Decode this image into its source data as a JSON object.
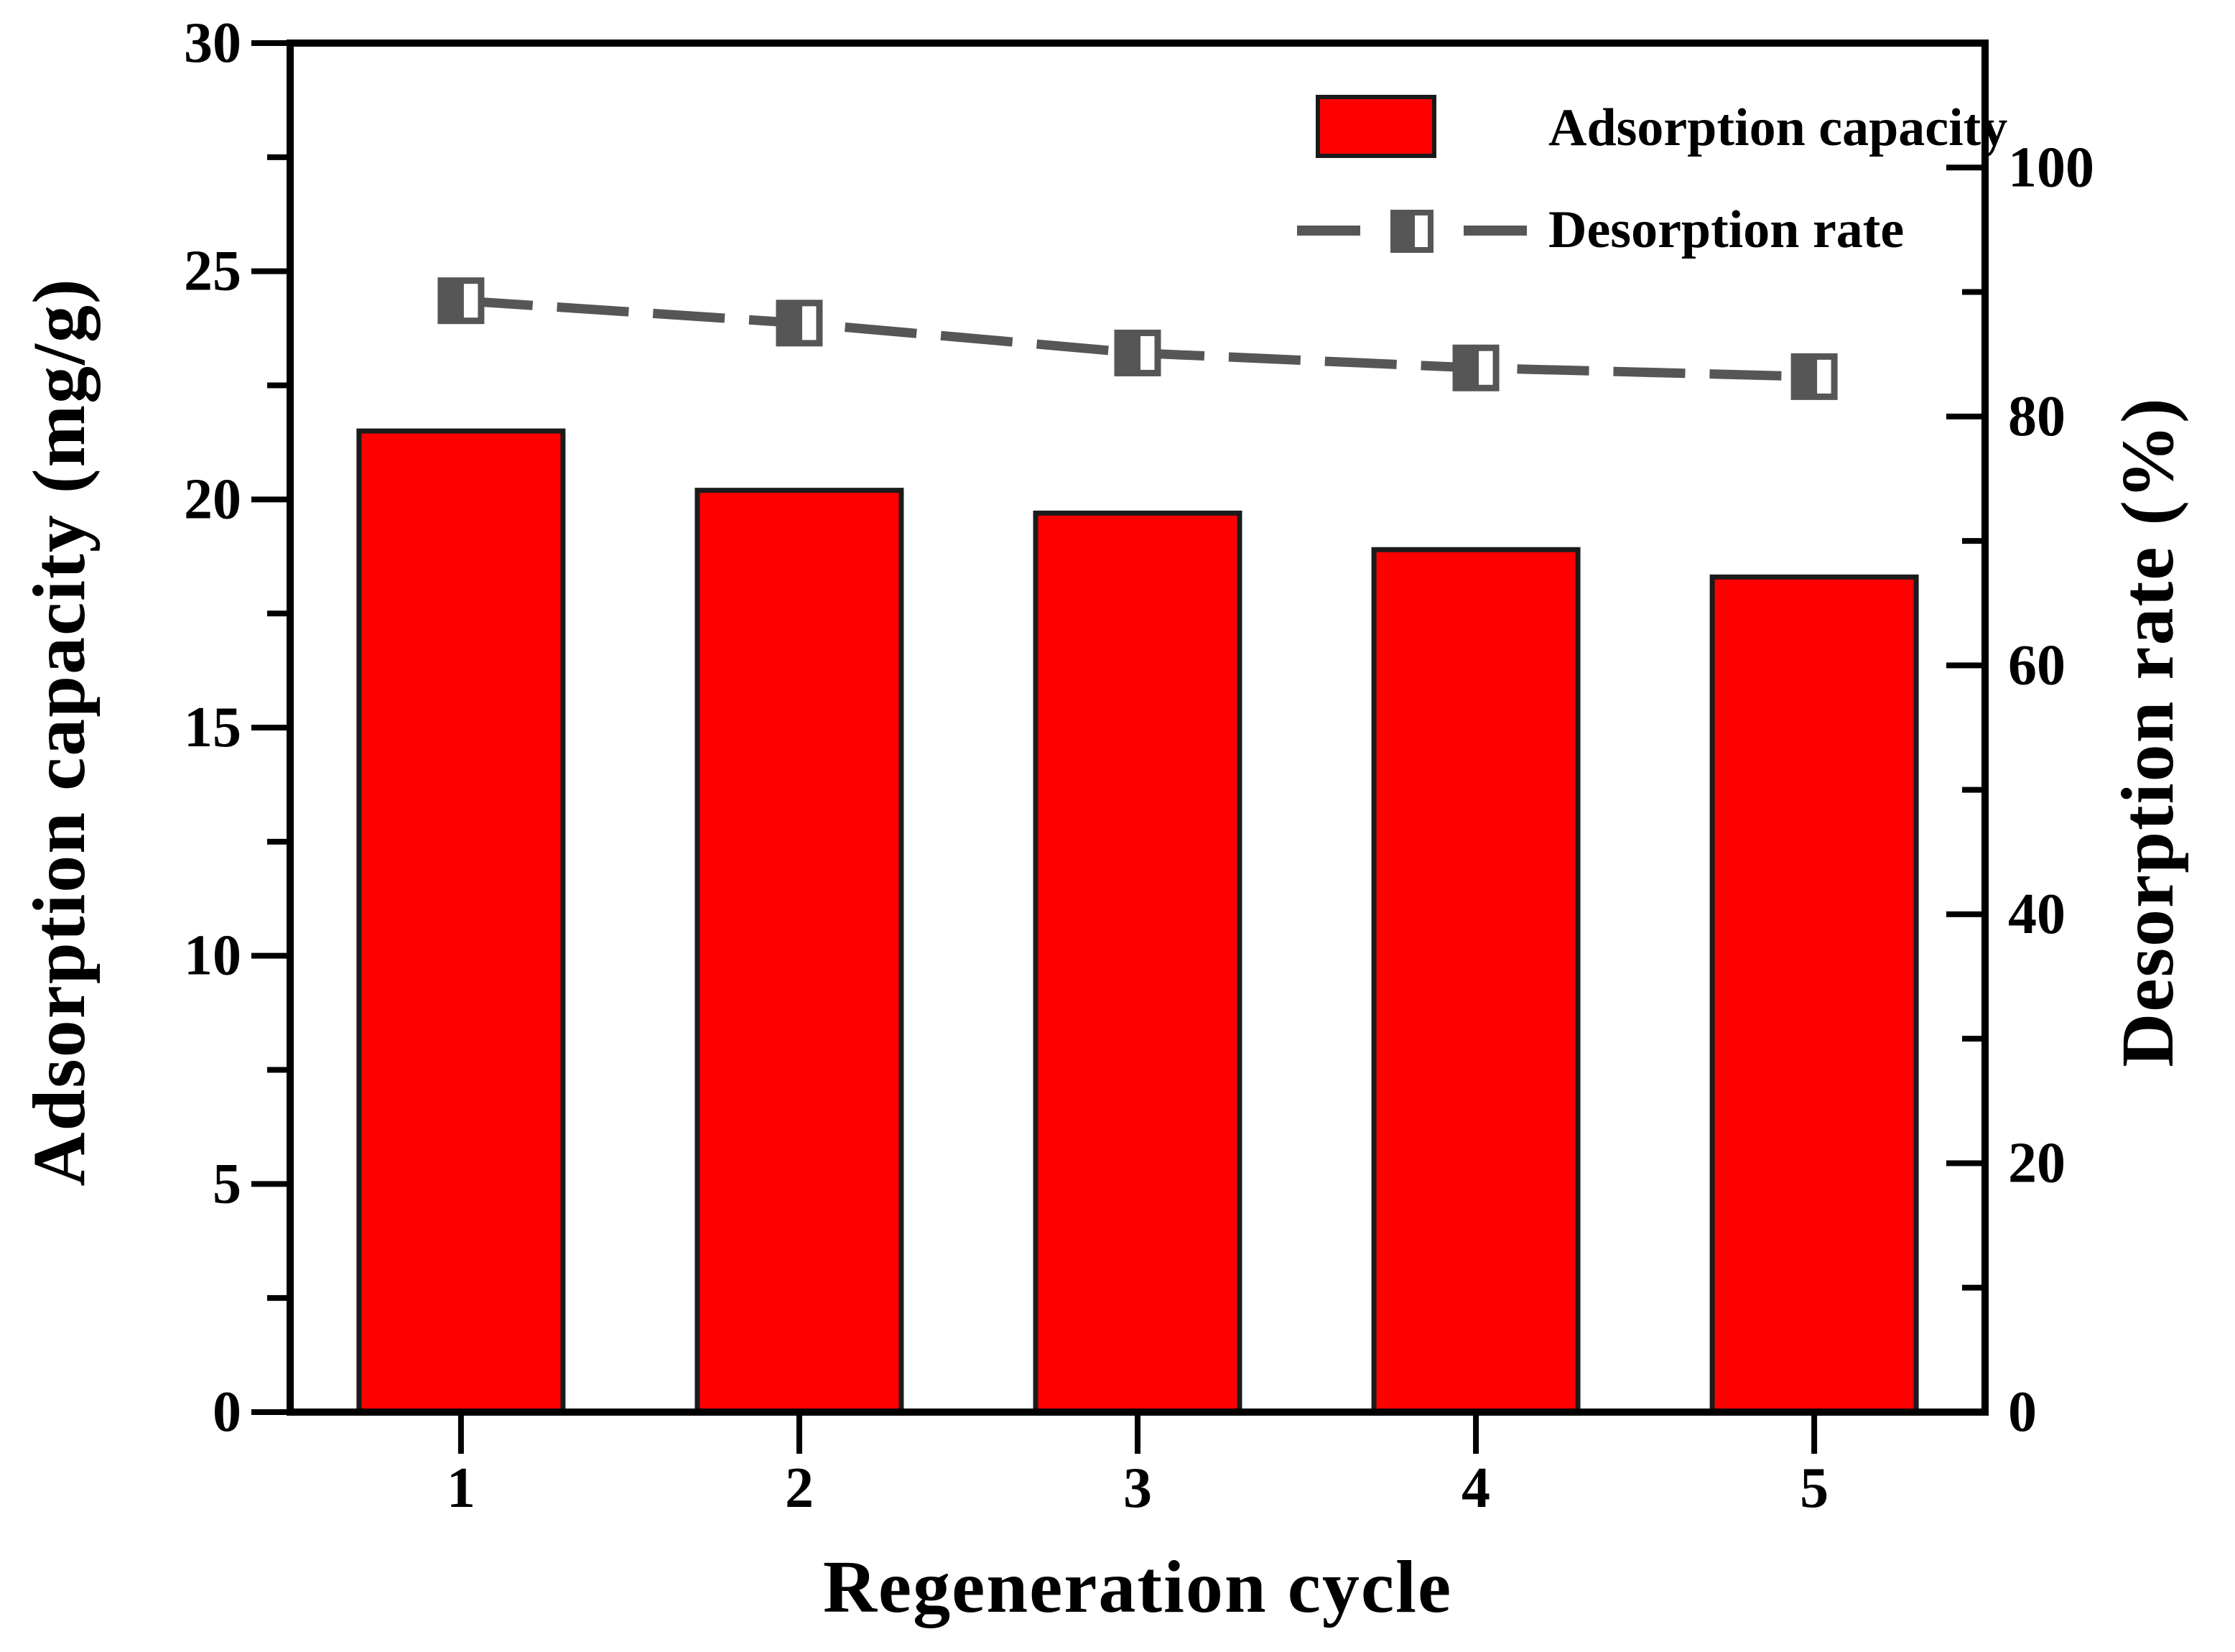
{
  "figure": {
    "background": "#ffffff",
    "frame_color": "#000000"
  },
  "chart_data": {
    "type": "combo-bar-line",
    "categories": [
      "1",
      "2",
      "3",
      "4",
      "5"
    ],
    "series": [
      {
        "name": "Adsorption capacity",
        "type": "bar",
        "axis": "left",
        "values": [
          21.5,
          20.2,
          19.7,
          18.9,
          18.3
        ],
        "fill_color": "#ff0000",
        "edge_color": "#1b1b1b"
      },
      {
        "name": "Desorption rate",
        "type": "line",
        "axis": "right",
        "values": [
          89.3,
          87.5,
          85.1,
          83.9,
          83.2
        ],
        "line_color": "#565656",
        "line_style": "dashed",
        "marker": "half-filled-square",
        "marker_fill_left": "#565656",
        "marker_fill_right": "#ffffff"
      }
    ],
    "xlabel": "Regeneration cycle",
    "left_axis": {
      "label": "Adsorption capacity (mg/g)",
      "min": 0,
      "max": 30,
      "major_ticks": [
        0,
        5,
        10,
        15,
        20,
        25,
        30
      ],
      "minor_step": 2.5
    },
    "right_axis": {
      "label": "Desorption rate (%)",
      "min": 0,
      "max": 110,
      "major_ticks": [
        0,
        20,
        40,
        60,
        80,
        100
      ],
      "minor_step": 10
    },
    "grid": false,
    "legend": {
      "position": "top-right",
      "items": [
        {
          "label": "Adsorption capacity",
          "swatch": "red-rectangle"
        },
        {
          "label": "Desorption rate",
          "swatch": "dashed-line-with-half-filled-square-marker"
        }
      ]
    }
  },
  "legend": {
    "item1": "Adsorption capacity",
    "item2": "Desorption rate"
  },
  "titles": {
    "left_axis": "Adsorption capacity (mg/g)",
    "right_axis": "Desorption rate (%)",
    "x_axis": "Regeneration cycle"
  },
  "colors": {
    "bar_fill": "#ff0000",
    "bar_edge": "#1b1b1b",
    "line_gray": "#565656",
    "axis_black": "#000000"
  }
}
